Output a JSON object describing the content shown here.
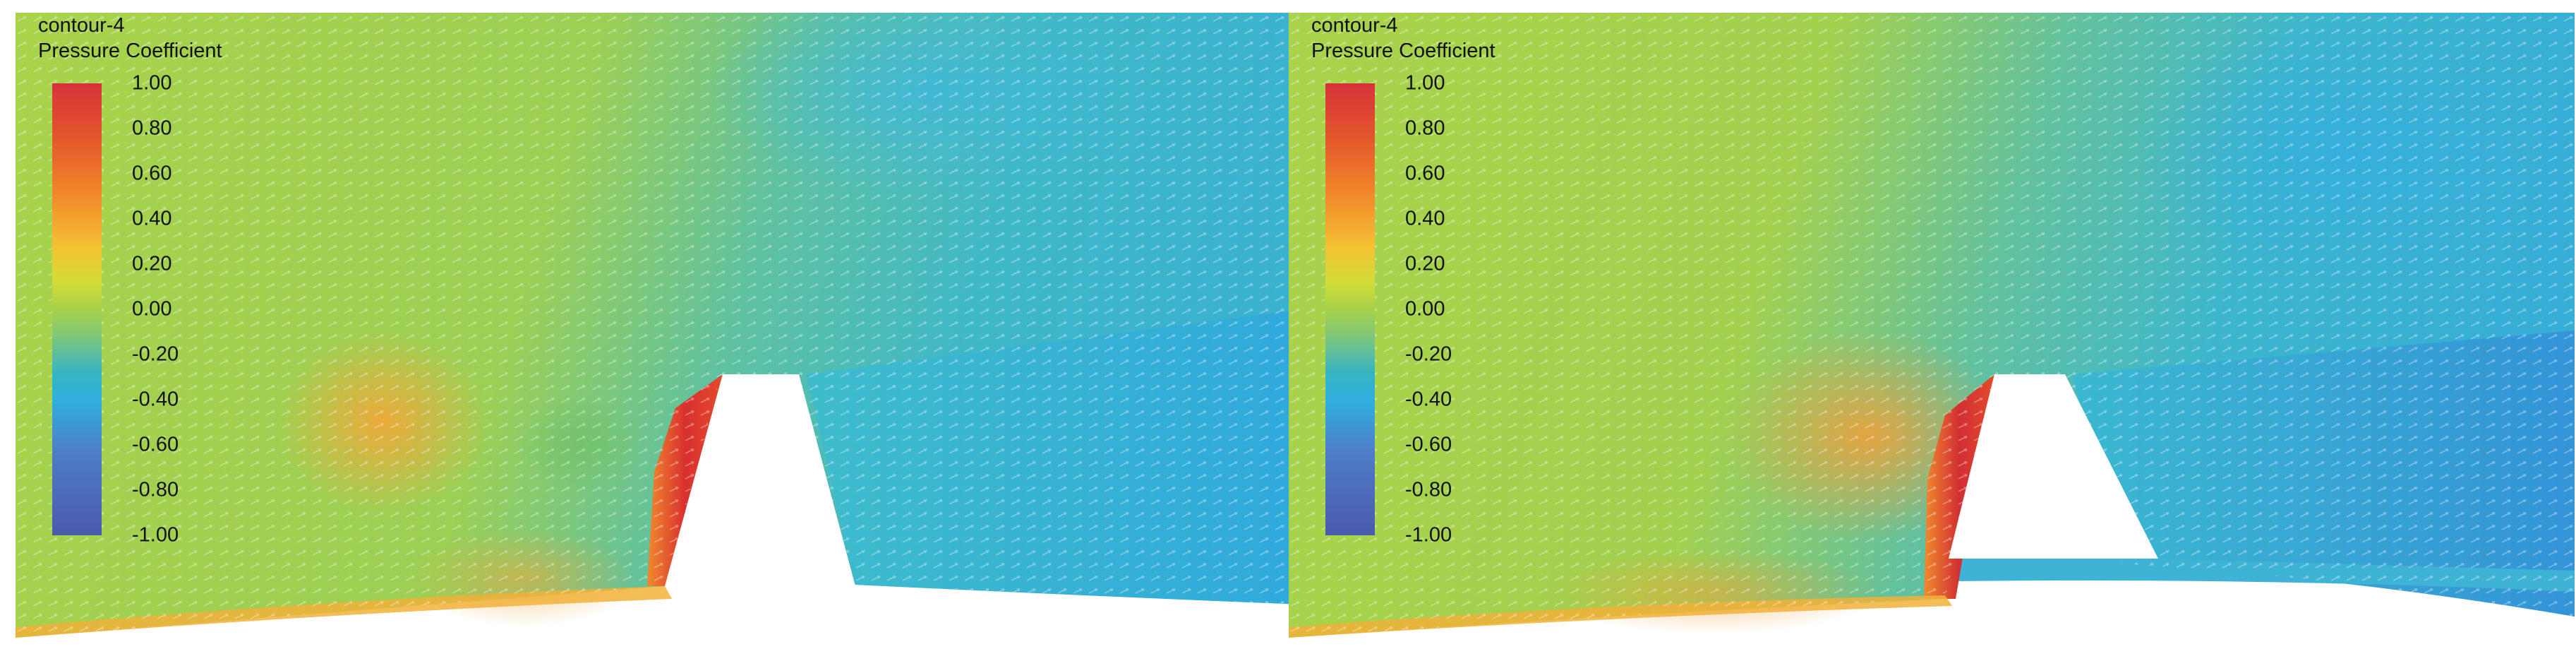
{
  "panels": [
    {
      "title": "contour-4",
      "subtitle": "Pressure Coefficient",
      "colorbar_ticks": [
        "1.00",
        "0.80",
        "0.60",
        "0.40",
        "0.20",
        "0.00",
        "-0.20",
        "-0.40",
        "-0.60",
        "-0.80",
        "-1.00"
      ]
    },
    {
      "title": "contour-4",
      "subtitle": "Pressure Coefficient",
      "colorbar_ticks": [
        "1.00",
        "0.80",
        "0.60",
        "0.40",
        "0.20",
        "0.00",
        "-0.20",
        "-0.40",
        "-0.60",
        "-0.80",
        "-1.00"
      ]
    }
  ],
  "colors": {
    "high": "#d6323a",
    "mid_high": "#f28a2b",
    "zero": "#a9d04a",
    "mid_low": "#2fb0de",
    "low": "#4a5aad",
    "background": "#ffffff"
  }
}
